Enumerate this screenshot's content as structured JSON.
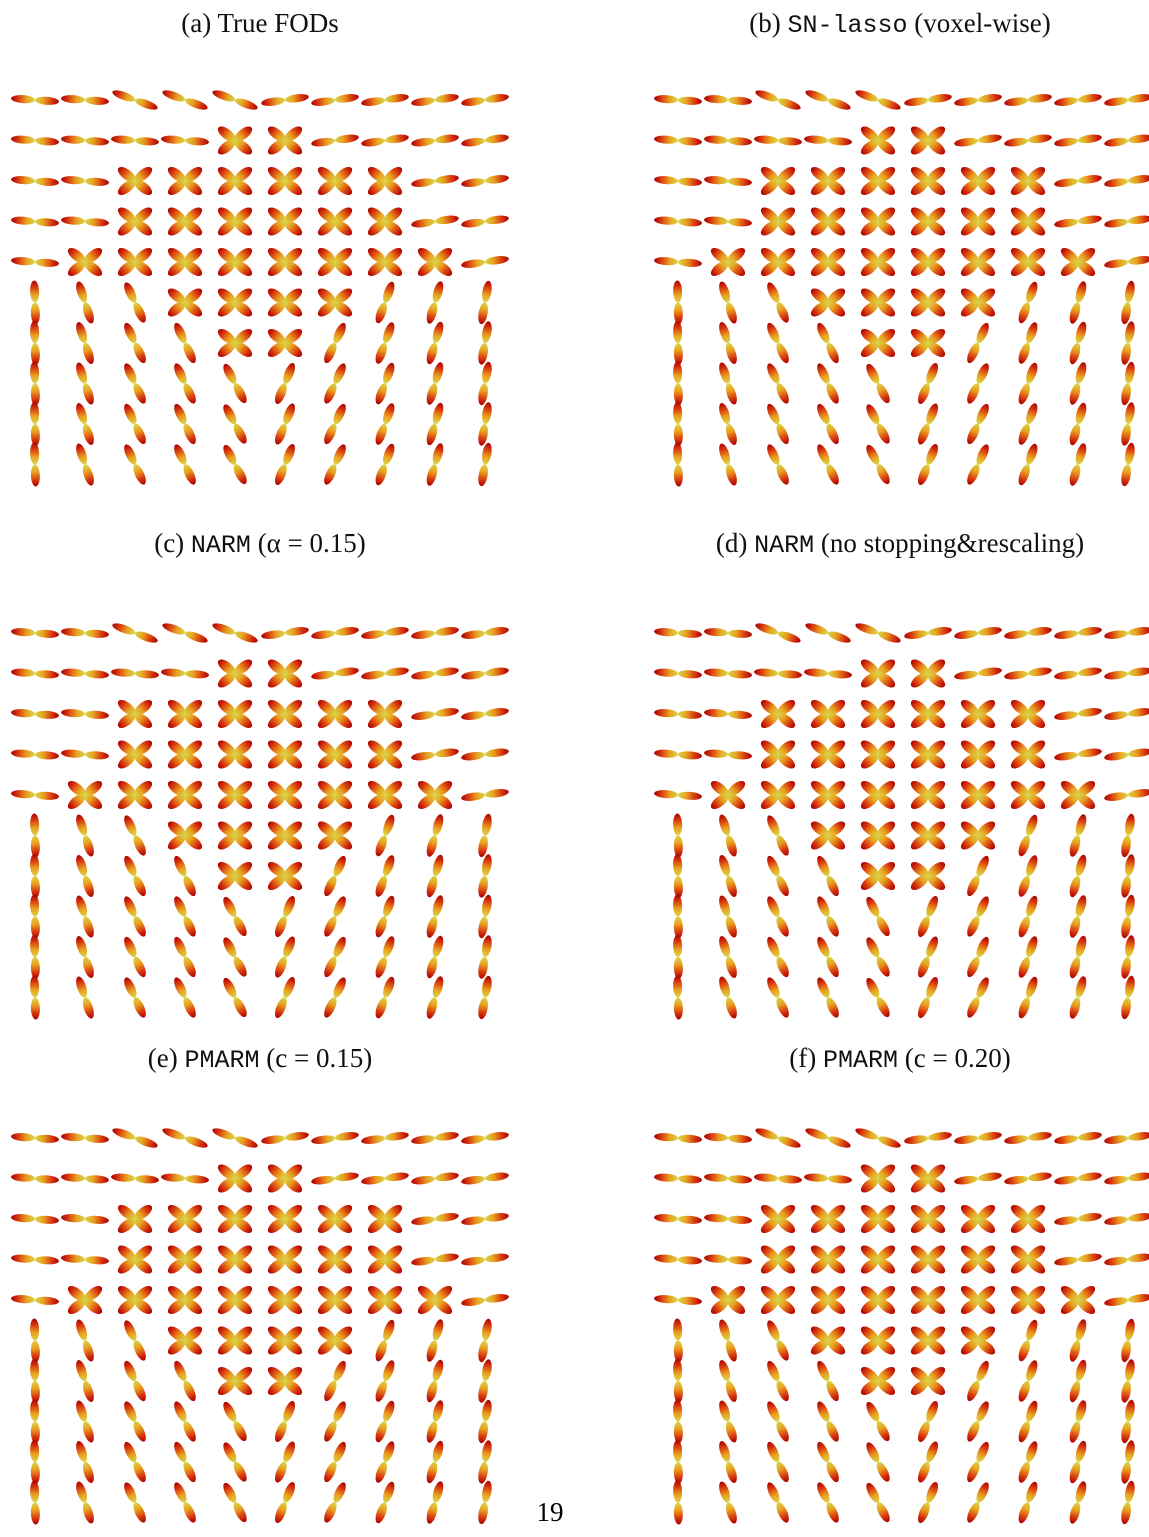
{
  "panels": [
    {
      "label": "(a)",
      "text": "True FODs"
    },
    {
      "label": "(b)",
      "code": "SN-lasso",
      "text": "(voxel-wise)"
    },
    {
      "label": "(c)",
      "code": "NARM",
      "text": "(α = 0.15)"
    },
    {
      "label": "(d)",
      "code": "NARM",
      "text": "(no stopping&rescaling)"
    },
    {
      "label": "(e)",
      "code": "PMARM",
      "text": "(c = 0.15)"
    },
    {
      "label": "(f)",
      "code": "PMARM",
      "text": "(c = 0.20)"
    }
  ],
  "page_number": "19"
}
